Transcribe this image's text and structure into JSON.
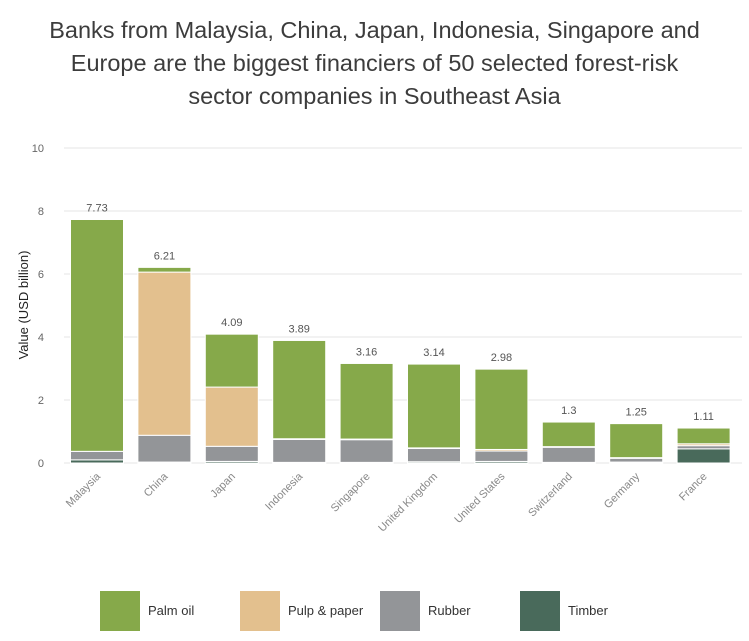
{
  "title_lines": [
    "Banks from Malaysia, China, Japan, Indonesia, Singapore and",
    "Europe are the biggest financiers of 50 selected forest-risk",
    "sector companies in Southeast Asia"
  ],
  "colors": {
    "Palm oil": "#86a94a",
    "Pulp & paper": "#e3c08e",
    "Rubber": "#939598",
    "Timber": "#496a5b"
  },
  "chart_data": {
    "type": "bar",
    "stacked": true,
    "title": "Banks from Malaysia, China, Japan, Indonesia, Singapore and Europe are the biggest financiers of 50 selected forest-risk sector companies in Southeast Asia",
    "xlabel": "",
    "ylabel": "Value (USD billion)",
    "ylim": [
      0,
      10
    ],
    "yticks": [
      0,
      2,
      4,
      6,
      8,
      10
    ],
    "grid": true,
    "legend_position": "bottom",
    "categories": [
      "Malaysia",
      "China",
      "Japan",
      "Indonesia",
      "Singapore",
      "United Kingdom",
      "United States",
      "Switzerland",
      "Germany",
      "France"
    ],
    "series": [
      {
        "name": "Timber",
        "values": [
          0.1,
          0.03,
          0.05,
          0.02,
          0.02,
          0.04,
          0.05,
          0.02,
          0.03,
          0.45
        ]
      },
      {
        "name": "Rubber",
        "values": [
          0.27,
          0.85,
          0.48,
          0.73,
          0.72,
          0.42,
          0.33,
          0.48,
          0.12,
          0.1
        ]
      },
      {
        "name": "Pulp & paper",
        "values": [
          0.0,
          5.18,
          1.88,
          0.02,
          0.02,
          0.02,
          0.05,
          0.02,
          0.02,
          0.06
        ]
      },
      {
        "name": "Palm oil",
        "values": [
          7.36,
          0.15,
          1.68,
          3.12,
          2.4,
          2.66,
          2.55,
          0.78,
          1.08,
          0.5
        ]
      }
    ],
    "totals": [
      7.73,
      6.21,
      4.09,
      3.89,
      3.16,
      3.14,
      2.98,
      1.3,
      1.25,
      1.11
    ],
    "total_labels": [
      "7.73",
      "6.21",
      "4.09",
      "3.89",
      "3.16",
      "3.14",
      "2.98",
      "1.3",
      "1.25",
      "1.11"
    ]
  },
  "legend": {
    "items": [
      {
        "label": "Palm oil",
        "color": "#86a94a"
      },
      {
        "label": "Pulp & paper",
        "color": "#e3c08e"
      },
      {
        "label": "Rubber",
        "color": "#939598"
      },
      {
        "label": "Timber",
        "color": "#496a5b"
      }
    ]
  }
}
